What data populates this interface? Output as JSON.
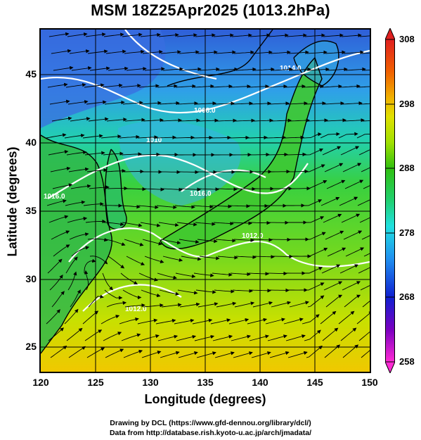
{
  "title": "MSM 18Z25Apr2025 (1013.2hPa)",
  "axes": {
    "xlabel": "Longitude (degrees)",
    "ylabel": "Latitude  (degrees)",
    "xticks": [
      "120",
      "125",
      "130",
      "135",
      "140",
      "145",
      "150"
    ],
    "yticks": [
      "45",
      "40",
      "35",
      "30",
      "25"
    ]
  },
  "map": {
    "lon_range": [
      120,
      150
    ],
    "lat_range": [
      22.4,
      47.6
    ],
    "contour_labels": [
      "1014.0",
      "1008.0",
      "1010",
      "1016.0",
      "1012.0",
      "1012.0",
      "1016.0"
    ]
  },
  "colorbar": {
    "ticks": [
      "308",
      "298",
      "288",
      "278",
      "268",
      "258"
    ],
    "range": [
      258,
      308
    ],
    "colors": [
      "#ff2ad4",
      "#7a00c0",
      "#1020d0",
      "#2090f0",
      "#20e0e0",
      "#20d070",
      "#30c010",
      "#a0e000",
      "#e0e000",
      "#f0b000",
      "#f06000",
      "#e02020"
    ]
  },
  "credits": {
    "line1": "Drawing by DCL (https://www.gfd-dennou.org/library/dcl/)",
    "line2": "Data from http://database.rish.kyoto-u.ac.jp/arch/jmadata/"
  }
}
